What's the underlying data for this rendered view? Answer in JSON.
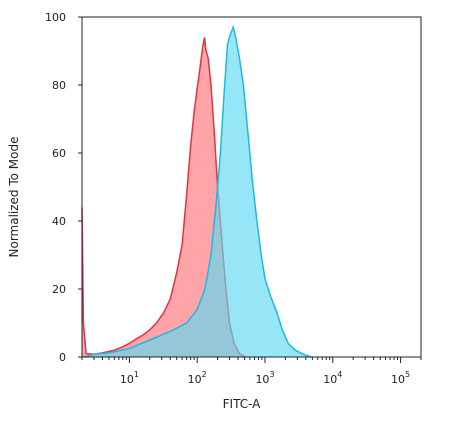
{
  "chart_data": {
    "type": "area",
    "xlabel": "FITC-A",
    "ylabel": "Normalized To Mode",
    "x_scale": "log",
    "xlim": [
      2,
      200000
    ],
    "ylim": [
      0,
      100
    ],
    "y_ticks": [
      "0",
      "20",
      "40",
      "60",
      "80",
      "100"
    ],
    "x_ticks": [
      {
        "base": "10",
        "exp": "1",
        "value": 10
      },
      {
        "base": "10",
        "exp": "2",
        "value": 100
      },
      {
        "base": "10",
        "exp": "3",
        "value": 1000
      },
      {
        "base": "10",
        "exp": "4",
        "value": 10000
      },
      {
        "base": "10",
        "exp": "5",
        "value": 100000
      }
    ],
    "grid": false,
    "series": [
      {
        "color": "#ff8f95",
        "stroke": "#e2333e",
        "points": [
          [
            2,
            44
          ],
          [
            2.1,
            10
          ],
          [
            2.3,
            1
          ],
          [
            3,
            0.8
          ],
          [
            4,
            1.2
          ],
          [
            6,
            2
          ],
          [
            8,
            3
          ],
          [
            10,
            4
          ],
          [
            13,
            5.5
          ],
          [
            16,
            6.5
          ],
          [
            20,
            8
          ],
          [
            25,
            10
          ],
          [
            32,
            13
          ],
          [
            40,
            17
          ],
          [
            50,
            25
          ],
          [
            60,
            33
          ],
          [
            70,
            48
          ],
          [
            80,
            62
          ],
          [
            90,
            72
          ],
          [
            100,
            79
          ],
          [
            110,
            85
          ],
          [
            120,
            91
          ],
          [
            128,
            94
          ],
          [
            135,
            90
          ],
          [
            145,
            88
          ],
          [
            160,
            80
          ],
          [
            180,
            65
          ],
          [
            200,
            50
          ],
          [
            230,
            35
          ],
          [
            260,
            22
          ],
          [
            300,
            10
          ],
          [
            350,
            4
          ],
          [
            420,
            1
          ],
          [
            520,
            0
          ]
        ]
      },
      {
        "color": "#5ed8f2",
        "stroke": "#1fb8e0",
        "points": [
          [
            2.2,
            0
          ],
          [
            3,
            0.8
          ],
          [
            5,
            1.2
          ],
          [
            10,
            2.5
          ],
          [
            20,
            5
          ],
          [
            40,
            7.5
          ],
          [
            70,
            10
          ],
          [
            100,
            14
          ],
          [
            130,
            20
          ],
          [
            160,
            30
          ],
          [
            190,
            45
          ],
          [
            220,
            60
          ],
          [
            250,
            78
          ],
          [
            280,
            92
          ],
          [
            310,
            95
          ],
          [
            340,
            97
          ],
          [
            370,
            94
          ],
          [
            420,
            88
          ],
          [
            480,
            80
          ],
          [
            560,
            66
          ],
          [
            650,
            52
          ],
          [
            760,
            40
          ],
          [
            880,
            30
          ],
          [
            1000,
            23
          ],
          [
            1200,
            18
          ],
          [
            1500,
            13
          ],
          [
            1800,
            8
          ],
          [
            2200,
            4
          ],
          [
            2800,
            2
          ],
          [
            3500,
            1
          ],
          [
            4800,
            0
          ]
        ]
      }
    ]
  }
}
